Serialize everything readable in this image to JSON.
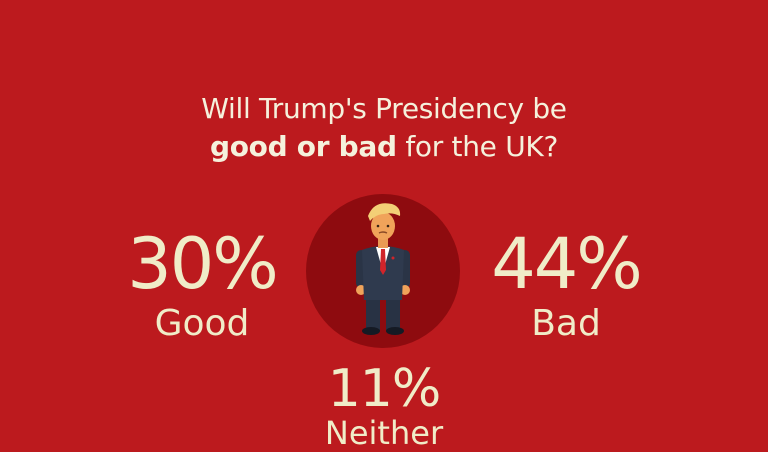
{
  "question": {
    "line1": "Will Trump's Presidency be",
    "line2_bold": "good or bad",
    "line2_rest": " for the UK?"
  },
  "results": {
    "good": {
      "percent": "30%",
      "label": "Good"
    },
    "bad": {
      "percent": "44%",
      "label": "Bad"
    },
    "neither": {
      "percent": "11%",
      "label": "Neither"
    }
  },
  "colors": {
    "background": "#bc1a1e",
    "text": "#f0ecc8",
    "circle": "#8e0b0f"
  },
  "icons": {
    "center": "trump-cartoon-icon"
  }
}
